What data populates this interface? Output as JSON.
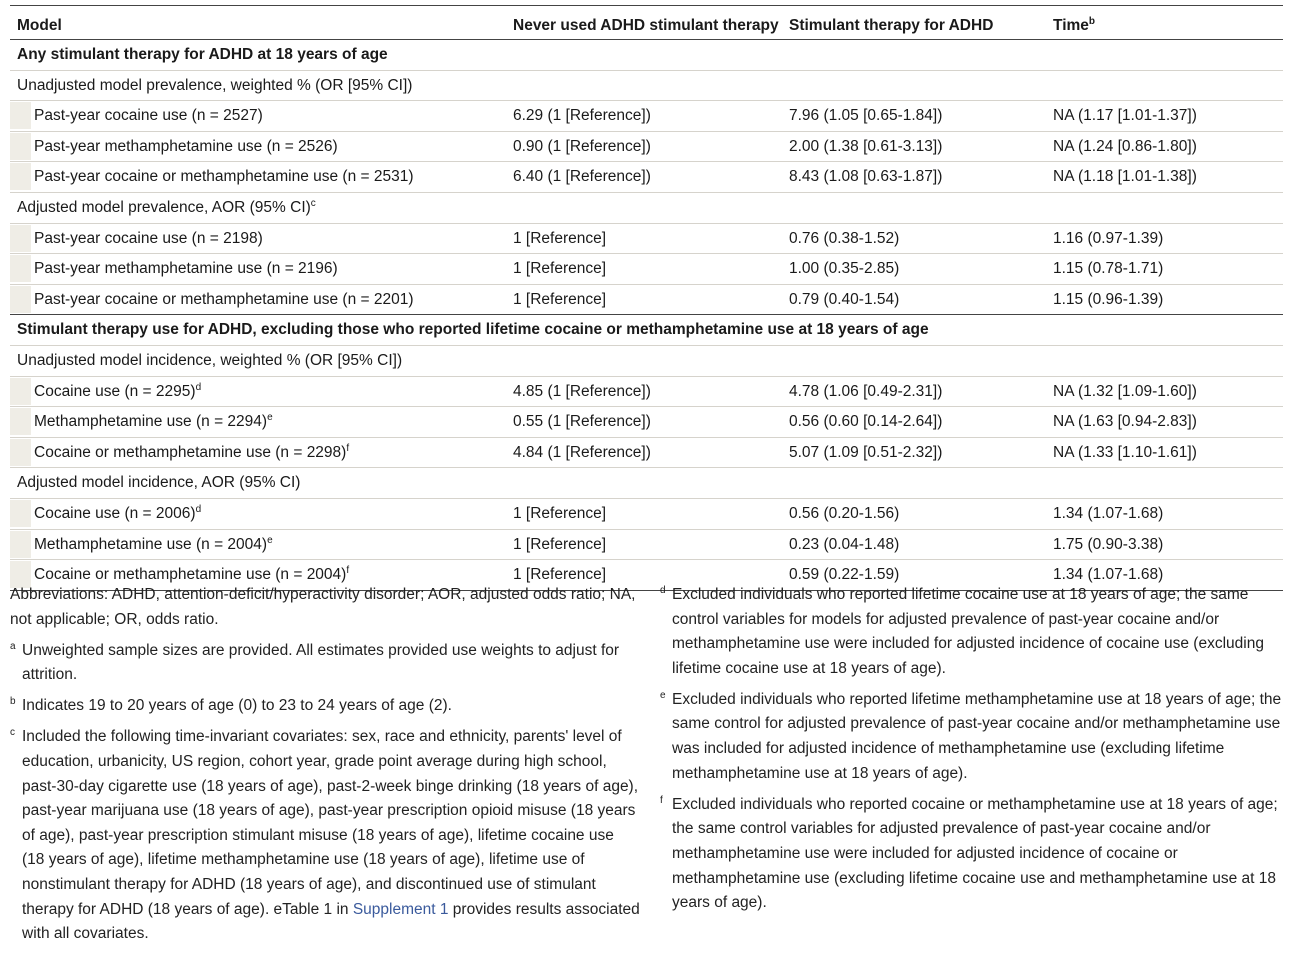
{
  "table": {
    "headers": [
      "Model",
      "Never used ADHD stimulant therapy",
      "Stimulant therapy for ADHD",
      "Time"
    ],
    "time_header_sup": "b",
    "sections": [
      {
        "title": "Any stimulant therapy for ADHD at 18 years of age",
        "groups": [
          {
            "label": "Unadjusted model prevalence, weighted % (OR [95% CI])",
            "label_sup": "",
            "rows": [
              {
                "label": "Past-year cocaine use (n = 2527)",
                "sup": "",
                "never": "6.29 (1 [Reference])",
                "stim": "7.96 (1.05 [0.65-1.84])",
                "time": "NA (1.17 [1.01-1.37])"
              },
              {
                "label": "Past-year methamphetamine use (n = 2526)",
                "sup": "",
                "never": "0.90 (1 [Reference])",
                "stim": "2.00 (1.38 [0.61-3.13])",
                "time": "NA (1.24 [0.86-1.80])"
              },
              {
                "label": "Past-year cocaine or methamphetamine use (n = 2531)",
                "sup": "",
                "never": "6.40 (1 [Reference])",
                "stim": "8.43 (1.08 [0.63-1.87])",
                "time": "NA (1.18 [1.01-1.38])"
              }
            ]
          },
          {
            "label": "Adjusted model prevalence, AOR (95% CI)",
            "label_sup": "c",
            "rows": [
              {
                "label": "Past-year cocaine use (n = 2198)",
                "sup": "",
                "never": "1 [Reference]",
                "stim": "0.76 (0.38-1.52)",
                "time": "1.16 (0.97-1.39)"
              },
              {
                "label": "Past-year methamphetamine use (n = 2196)",
                "sup": "",
                "never": "1 [Reference]",
                "stim": "1.00 (0.35-2.85)",
                "time": "1.15 (0.78-1.71)"
              },
              {
                "label": "Past-year cocaine or methamphetamine use (n = 2201)",
                "sup": "",
                "never": "1 [Reference]",
                "stim": "0.79 (0.40-1.54)",
                "time": "1.15 (0.96-1.39)"
              }
            ]
          }
        ]
      },
      {
        "title": "Stimulant therapy use for ADHD, excluding those who reported lifetime cocaine or methamphetamine use at 18 years of age",
        "groups": [
          {
            "label": "Unadjusted model incidence, weighted % (OR [95% CI])",
            "label_sup": "",
            "rows": [
              {
                "label": "Cocaine use (n = 2295)",
                "sup": "d",
                "never": "4.85 (1 [Reference])",
                "stim": "4.78 (1.06 [0.49-2.31])",
                "time": "NA (1.32 [1.09-1.60])"
              },
              {
                "label": "Methamphetamine use (n = 2294)",
                "sup": "e",
                "never": "0.55 (1 [Reference])",
                "stim": "0.56 (0.60 [0.14-2.64])",
                "time": "NA (1.63 [0.94-2.83])"
              },
              {
                "label": "Cocaine or methamphetamine use (n = 2298)",
                "sup": "f",
                "never": "4.84 (1 [Reference])",
                "stim": "5.07 (1.09 [0.51-2.32])",
                "time": "NA (1.33 [1.10-1.61])"
              }
            ]
          },
          {
            "label": "Adjusted model incidence, AOR (95% CI)",
            "label_sup": "",
            "rows": [
              {
                "label": "Cocaine use (n = 2006)",
                "sup": "d",
                "never": "1 [Reference]",
                "stim": "0.56 (0.20-1.56)",
                "time": "1.34 (1.07-1.68)"
              },
              {
                "label": "Methamphetamine use (n = 2004)",
                "sup": "e",
                "never": "1 [Reference]",
                "stim": "0.23 (0.04-1.48)",
                "time": "1.75 (0.90-3.38)"
              },
              {
                "label": "Cocaine or methamphetamine use (n = 2004)",
                "sup": "f",
                "never": "1 [Reference]",
                "stim": "0.59 (0.22-1.59)",
                "time": "1.34 (1.07-1.68)"
              }
            ]
          }
        ]
      }
    ]
  },
  "notes": {
    "abbreviations": "Abbreviations: ADHD, attention-deficit/hyperactivity disorder; AOR, adjusted odds ratio; NA, not applicable; OR, odds ratio.",
    "footnotes_left": [
      {
        "mark": "a",
        "text": "Unweighted sample sizes are provided. All estimates provided use weights to adjust for attrition."
      },
      {
        "mark": "b",
        "text": "Indicates 19 to 20 years of age (0) to 23 to 24 years of age (2)."
      },
      {
        "mark": "c",
        "text": "Included the following time-invariant covariates: sex, race and ethnicity, parents' level of education, urbanicity, US region, cohort year, grade point average during high school, past-30-day cigarette use (18 years of age), past-2-week binge drinking (18 years of age), past-year marijuana use (18 years of age), past-year prescription opioid misuse (18 years of age), past-year prescription stimulant misuse (18 years of age), lifetime cocaine use (18 years of age), lifetime methamphetamine use (18 years of age), lifetime use of nonstimulant therapy for ADHD (18 years of age), and discontinued use of stimulant therapy for ADHD (18 years of age). eTable 1 in ",
        "link": "Supplement 1",
        "after": " provides results associated with all covariates."
      }
    ],
    "footnotes_right": [
      {
        "mark": "d",
        "text": "Excluded individuals who reported lifetime cocaine use at 18 years of age; the same control variables for models for adjusted prevalence of past-year cocaine and/or methamphetamine use were included for adjusted incidence of cocaine use (excluding lifetime cocaine use at 18 years of age)."
      },
      {
        "mark": "e",
        "text": "Excluded individuals who reported lifetime methamphetamine use at 18 years of age; the same control for adjusted prevalence of past-year cocaine and/or methamphetamine use was included for adjusted incidence of methamphetamine use (excluding lifetime methamphetamine use at 18 years of age)."
      },
      {
        "mark": "f",
        "text": "Excluded individuals who reported cocaine or methamphetamine use at 18 years of age; the same control variables for adjusted prevalence of past-year cocaine and/or methamphetamine use were included for adjusted incidence of cocaine or methamphetamine use (excluding lifetime cocaine use and methamphetamine use at 18 years of age)."
      }
    ],
    "link_color": "#3a5a9c"
  }
}
